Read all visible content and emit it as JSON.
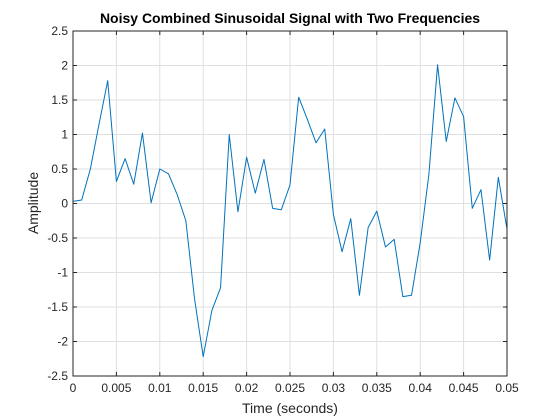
{
  "chart_data": {
    "type": "line",
    "title": "Noisy Combined Sinusoidal Signal with Two Frequencies",
    "xlabel": "Time (seconds)",
    "ylabel": "Amplitude",
    "xlim": [
      0,
      0.05
    ],
    "ylim": [
      -2.5,
      2.5
    ],
    "xticks": [
      0,
      0.005,
      0.01,
      0.015,
      0.02,
      0.025,
      0.03,
      0.035,
      0.04,
      0.045,
      0.05
    ],
    "xtick_labels": [
      "0",
      "0.005",
      "0.01",
      "0.015",
      "0.02",
      "0.025",
      "0.03",
      "0.035",
      "0.04",
      "0.045",
      "0.05"
    ],
    "yticks": [
      -2.5,
      -2,
      -1.5,
      -1,
      -0.5,
      0,
      0.5,
      1,
      1.5,
      2,
      2.5
    ],
    "ytick_labels": [
      "-2.5",
      "-2",
      "-1.5",
      "-1",
      "-0.5",
      "0",
      "0.5",
      "1",
      "1.5",
      "2",
      "2.5"
    ],
    "grid": true,
    "line_color": "#0072bd",
    "series": [
      {
        "x": [
          0,
          0.001,
          0.002,
          0.003,
          0.004,
          0.005,
          0.006,
          0.007,
          0.008,
          0.009,
          0.01,
          0.011,
          0.012,
          0.013,
          0.014,
          0.015,
          0.016,
          0.017,
          0.018,
          0.019,
          0.02,
          0.021,
          0.022,
          0.023,
          0.024,
          0.025,
          0.026,
          0.027,
          0.028,
          0.029,
          0.03,
          0.031,
          0.032,
          0.033,
          0.034,
          0.035,
          0.036,
          0.037,
          0.038,
          0.039,
          0.04,
          0.041,
          0.042,
          0.043,
          0.044,
          0.045,
          0.046,
          0.047,
          0.048,
          0.049,
          0.05
        ],
        "y": [
          0.03,
          0.05,
          0.5,
          1.15,
          1.78,
          0.32,
          0.65,
          0.28,
          1.02,
          0.01,
          0.5,
          0.43,
          0.13,
          -0.25,
          -1.38,
          -2.22,
          -1.55,
          -1.22,
          1.0,
          -0.12,
          0.67,
          0.15,
          0.64,
          -0.07,
          -0.09,
          0.27,
          1.54,
          1.22,
          0.88,
          1.08,
          -0.16,
          -0.7,
          -0.22,
          -1.33,
          -0.35,
          -0.11,
          -0.63,
          -0.52,
          -1.35,
          -1.33,
          -0.57,
          0.42,
          2.01,
          0.9,
          1.53,
          1.26,
          -0.07,
          0.2,
          -0.82,
          0.38,
          -0.37
        ]
      }
    ]
  }
}
